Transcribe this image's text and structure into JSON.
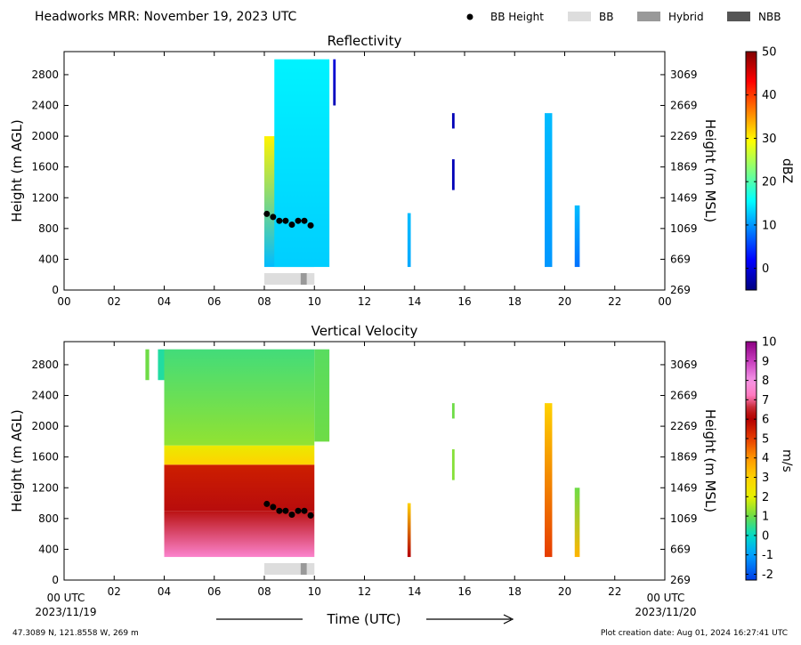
{
  "header": {
    "title": "Headworks MRR:  November 19, 2023 UTC",
    "legend": [
      {
        "label": "BB Height",
        "kind": "dot",
        "color": "#000000"
      },
      {
        "label": "BB",
        "kind": "patch",
        "color": "#dddddd"
      },
      {
        "label": "Hybrid",
        "kind": "patch",
        "color": "#999999"
      },
      {
        "label": "NBB",
        "kind": "patch",
        "color": "#555555"
      }
    ]
  },
  "footer": {
    "location": "47.3089 N, 121.8558 W, 269 m",
    "created": "Plot creation date: Aug 01, 2024 16:27:41 UTC",
    "xlabel": "Time (UTC)",
    "start_label": "00 UTC",
    "start_date": "2023/11/19",
    "end_label": "00 UTC",
    "end_date": "2023/11/20"
  },
  "chart_data": [
    {
      "type": "heatmap",
      "title": "Reflectivity",
      "ylabel": "Height (m AGL)",
      "ylabel_right": "Height (m MSL)",
      "xlim": [
        0,
        24
      ],
      "ylim": [
        0,
        3100
      ],
      "x_ticks": [
        "00",
        "02",
        "04",
        "06",
        "08",
        "10",
        "12",
        "14",
        "16",
        "18",
        "20",
        "22",
        "00"
      ],
      "y_ticks": [
        0,
        400,
        800,
        1200,
        1600,
        2000,
        2400,
        2800
      ],
      "y_ticks_right": [
        "269",
        "669",
        "1069",
        "1469",
        "1869",
        "2269",
        "2669",
        "3069"
      ],
      "colorbar": {
        "label": "dBZ",
        "range": [
          -5,
          50
        ],
        "ticks": [
          "0",
          "10",
          "20",
          "30",
          "40",
          "50"
        ],
        "scheme": "jet"
      },
      "precip_blocks": [
        {
          "t0": 8.0,
          "t1": 10.0,
          "h0": 300,
          "h1": 2000,
          "base": 12,
          "top": 30
        },
        {
          "t0": 8.4,
          "t1": 10.6,
          "h0": 300,
          "h1": 3000,
          "base": 13,
          "top": 15
        },
        {
          "t0": 10.75,
          "t1": 10.85,
          "h0": 2400,
          "h1": 3000,
          "base": -2,
          "top": 0
        },
        {
          "t0": 13.72,
          "t1": 13.85,
          "h0": 300,
          "h1": 1000,
          "base": 11,
          "top": 12
        },
        {
          "t0": 15.5,
          "t1": 15.6,
          "h0": 1300,
          "h1": 1700,
          "base": -2,
          "top": -2
        },
        {
          "t0": 15.5,
          "t1": 15.6,
          "h0": 2100,
          "h1": 2300,
          "base": -2,
          "top": -2
        },
        {
          "t0": 19.2,
          "t1": 19.5,
          "h0": 300,
          "h1": 2300,
          "base": 10,
          "top": 12
        },
        {
          "t0": 20.4,
          "t1": 20.6,
          "h0": 300,
          "h1": 1100,
          "base": 8,
          "top": 12
        }
      ],
      "bb_height": {
        "x": [
          8.1,
          8.35,
          8.6,
          8.85,
          9.1,
          9.35,
          9.6,
          9.85
        ],
        "y": [
          990,
          950,
          900,
          900,
          850,
          900,
          900,
          840
        ]
      },
      "bb_type": [
        {
          "t0": 8.0,
          "t1": 9.45,
          "kind": "BB"
        },
        {
          "t0": 9.45,
          "t1": 9.7,
          "kind": "Hybrid"
        },
        {
          "t0": 9.7,
          "t1": 10.0,
          "kind": "BB"
        }
      ]
    },
    {
      "type": "heatmap",
      "title": "Vertical Velocity",
      "ylabel": "Height (m AGL)",
      "ylabel_right": "Height (m MSL)",
      "xlim": [
        0,
        24
      ],
      "ylim": [
        0,
        3100
      ],
      "x_ticks": [
        "00",
        "02",
        "04",
        "06",
        "08",
        "10",
        "12",
        "14",
        "16",
        "18",
        "20",
        "22",
        "00"
      ],
      "y_ticks": [
        0,
        400,
        800,
        1200,
        1600,
        2000,
        2400,
        2800
      ],
      "y_ticks_right": [
        "269",
        "669",
        "1069",
        "1469",
        "1869",
        "2269",
        "2669",
        "3069"
      ],
      "colorbar": {
        "label": "m/s",
        "range": [
          -2.3,
          10
        ],
        "ticks": [
          "-2",
          "-1",
          "0",
          "1",
          "2",
          "3",
          "4",
          "5",
          "6",
          "7",
          "8",
          "9",
          "10"
        ],
        "scheme": "velocity"
      },
      "precip_blocks": [
        {
          "t0": 3.25,
          "t1": 3.4,
          "h0": 2600,
          "h1": 3000,
          "base": 1,
          "top": 1
        },
        {
          "t0": 3.75,
          "t1": 4.0,
          "h0": 2600,
          "h1": 3000,
          "base": 0.3,
          "top": 0.3
        },
        {
          "t0": 4.0,
          "t1": 10.0,
          "h0": 300,
          "h1": 900,
          "base": 7.5,
          "top": 6.3
        },
        {
          "t0": 4.0,
          "t1": 10.0,
          "h0": 900,
          "h1": 1500,
          "base": 6.2,
          "top": 5.5
        },
        {
          "t0": 4.0,
          "t1": 10.0,
          "h0": 1500,
          "h1": 1750,
          "base": 3,
          "top": 2.2
        },
        {
          "t0": 4.0,
          "t1": 10.0,
          "h0": 1750,
          "h1": 3000,
          "base": 1.3,
          "top": 0.6
        },
        {
          "t0": 10.0,
          "t1": 10.6,
          "h0": 1800,
          "h1": 3000,
          "base": 1,
          "top": 0.8
        },
        {
          "t0": 13.72,
          "t1": 13.85,
          "h0": 300,
          "h1": 1000,
          "base": 6,
          "top": 3
        },
        {
          "t0": 15.5,
          "t1": 15.6,
          "h0": 1300,
          "h1": 1700,
          "base": 1.2,
          "top": 1.2
        },
        {
          "t0": 15.5,
          "t1": 15.6,
          "h0": 2100,
          "h1": 2300,
          "base": 1,
          "top": 1
        },
        {
          "t0": 19.2,
          "t1": 19.5,
          "h0": 300,
          "h1": 2300,
          "base": 5,
          "top": 3
        },
        {
          "t0": 20.4,
          "t1": 20.6,
          "h0": 300,
          "h1": 1200,
          "base": 3.5,
          "top": 1
        }
      ],
      "bb_height": {
        "x": [
          8.1,
          8.35,
          8.6,
          8.85,
          9.1,
          9.35,
          9.6,
          9.85
        ],
        "y": [
          990,
          950,
          900,
          900,
          850,
          900,
          900,
          840
        ]
      },
      "bb_type": [
        {
          "t0": 8.0,
          "t1": 9.45,
          "kind": "BB"
        },
        {
          "t0": 9.45,
          "t1": 9.7,
          "kind": "Hybrid"
        },
        {
          "t0": 9.7,
          "t1": 10.0,
          "kind": "BB"
        }
      ]
    }
  ]
}
